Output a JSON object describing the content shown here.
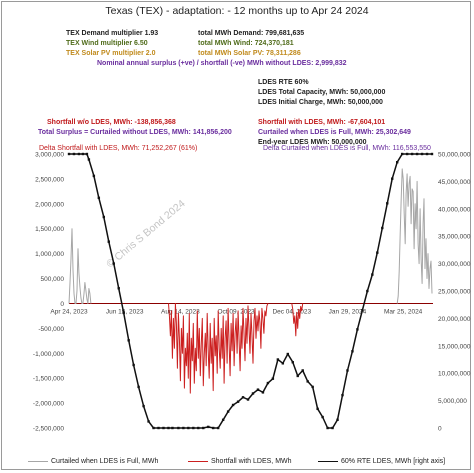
{
  "header": {
    "title": "Texas (TEX) - adaptation: - 12 months up to  Apr 24 2024",
    "demand_multiplier": "TEX Demand multiplier  1.93",
    "wind_multiplier": "TEX Wind multiplier  6.50",
    "solar_multiplier": "TEX Solar PV multiplier  2.0",
    "total_demand": "total MWh Demand:   799,681,635",
    "total_wind": "total MWh Wind:   724,370,181",
    "total_solar": "total MWh Solar PV:   78,311,286",
    "nominal_surplus": "Nominal annual surplus (+ve) / shortfall (-ve) MWh without LDES:   2,999,832",
    "ldes_rte": "LDES RTE 60%",
    "ldes_capacity": "LDES Total Capacity, MWh:  50,000,000",
    "ldes_initial": "LDES Initial Charge, MWh:  50,000,000"
  },
  "annotations": {
    "shortfall_without": "Shortfall w/o LDES, MWh:  -138,856,368",
    "total_surplus": "Total Surplus = Curtailed without LDES, MWh:  141,856,200",
    "delta_shortfall": "Delta Shortfall with LDES, MWh:  71,252,267  (61%)",
    "shortfall_with": "Shortfall with LDES, MWh:  -67,604,101",
    "curtailed_full": "Curtailed when LDES is Full, MWh:  25,302,649",
    "end_year": "End-year LDES MWh:  50,000,000",
    "delta_curtailed": "Delta Curtailed when LDES is Full, MWh:  116,553,550",
    "watermark": "© Chris S Bond  2024"
  },
  "colors": {
    "gray_series": "#a6a6a6",
    "red_series": "#cc1f1f",
    "black_series": "#111111",
    "demand_text": "#1f1f1f",
    "wind_text": "#4f6b1a",
    "solar_text": "#c08a1c",
    "purple_text": "#6a2e9e",
    "red_text": "#c0191b"
  },
  "chart_data": {
    "type": "line",
    "x_tick_labels": [
      "Apr 24, 2023",
      "Jun 19, 2023",
      "Aug 14, 2023",
      "Oct 09, 2023",
      "Dec 04, 2023",
      "Jan 29, 2024",
      "Mar 25, 2024"
    ],
    "x_tick_days": [
      0,
      56,
      112,
      168,
      224,
      280,
      336
    ],
    "x_range_days": [
      0,
      366
    ],
    "left_axis": {
      "ylim": [
        -2500000,
        3000000
      ],
      "ticks": [
        3000000,
        2500000,
        2000000,
        1500000,
        1000000,
        500000,
        0,
        -500000,
        -1000000,
        -1500000,
        -2000000,
        -2500000
      ],
      "tick_labels": [
        "3,000,000",
        "2,500,000",
        "2,000,000",
        "1,500,000",
        "1,000,000",
        "500,000",
        "0",
        "-500,000",
        "-1,000,000",
        "-1,500,000",
        "-2,000,000",
        "-2,500,000"
      ]
    },
    "right_axis": {
      "ylim": [
        0,
        50000000
      ],
      "ticks": [
        50000000,
        45000000,
        40000000,
        35000000,
        30000000,
        25000000,
        20000000,
        15000000,
        10000000,
        5000000,
        0
      ],
      "tick_labels": [
        "50,000,000",
        "45,000,000",
        "40,000,000",
        "35,000,000",
        "30,000,000",
        "25,000,000",
        "20,000,000",
        "15,000,000",
        "10,000,000",
        "5,000,000",
        "0"
      ]
    },
    "series": [
      {
        "name": "Curtailed when LDES is Full, MWh",
        "axis": "left",
        "x": [
          0,
          1,
          2,
          3,
          4,
          5,
          6,
          7,
          8,
          9,
          10,
          11,
          12,
          13,
          14,
          15,
          16,
          17,
          18,
          19,
          20,
          21,
          22,
          330,
          331,
          332,
          333,
          334,
          335,
          336,
          337,
          338,
          339,
          340,
          341,
          342,
          343,
          344,
          345,
          346,
          347,
          348,
          349,
          350,
          351,
          352,
          353,
          354,
          355,
          356,
          357,
          358,
          359,
          360,
          361,
          362,
          363,
          364,
          365
        ],
        "y": [
          0,
          420000,
          900000,
          1500000,
          680000,
          200000,
          0,
          0,
          260000,
          1100000,
          620000,
          340000,
          120000,
          0,
          0,
          180000,
          420000,
          260000,
          90000,
          0,
          300000,
          200000,
          0,
          0,
          150000,
          650000,
          1400000,
          2100000,
          2700000,
          2500000,
          1800000,
          1200000,
          2200000,
          2600000,
          1950000,
          2400000,
          2550000,
          1600000,
          2300000,
          2250000,
          1100000,
          2000000,
          1500000,
          2450000,
          1200000,
          800000,
          1900000,
          900000,
          400000,
          1600000,
          2100000,
          700000,
          1300000,
          500000,
          1000000,
          300000,
          700000,
          850000,
          200000
        ]
      },
      {
        "name": "Shortfall with LDES, MWh",
        "axis": "left",
        "x": [
          100,
          101,
          102,
          103,
          104,
          105,
          106,
          107,
          108,
          109,
          110,
          111,
          112,
          113,
          114,
          115,
          116,
          117,
          118,
          119,
          120,
          121,
          122,
          123,
          124,
          125,
          126,
          127,
          128,
          129,
          130,
          131,
          132,
          133,
          134,
          135,
          136,
          137,
          138,
          139,
          140,
          141,
          142,
          143,
          144,
          145,
          146,
          147,
          148,
          149,
          150,
          151,
          152,
          153,
          154,
          155,
          156,
          157,
          158,
          159,
          160,
          161,
          162,
          163,
          164,
          165,
          166,
          167,
          168,
          169,
          170,
          171,
          172,
          173,
          174,
          175,
          176,
          177,
          178,
          179,
          180,
          181,
          182,
          183,
          184,
          185,
          186,
          187,
          188,
          189,
          190,
          191,
          192,
          193,
          194,
          195,
          196,
          197,
          198,
          199,
          200,
          224,
          225,
          226,
          227,
          228,
          229,
          230,
          231,
          232,
          233,
          234,
          235
        ],
        "y": [
          0,
          -250000,
          -650000,
          -150000,
          -1100000,
          -300000,
          -900000,
          0,
          -400000,
          -1300000,
          -200000,
          -700000,
          -1550000,
          -500000,
          -1000000,
          -250000,
          -1700000,
          -900000,
          -1250000,
          -600000,
          -1500000,
          -200000,
          -1800000,
          -700000,
          -1150000,
          -400000,
          -1600000,
          -900000,
          -1350000,
          -150000,
          -1100000,
          -500000,
          -1450000,
          -800000,
          -300000,
          -1650000,
          -1000000,
          -600000,
          -1250000,
          -200000,
          -950000,
          -1500000,
          -400000,
          -1200000,
          -700000,
          -1750000,
          -300000,
          -1050000,
          -650000,
          -1400000,
          -150000,
          -900000,
          -1300000,
          -500000,
          -1100000,
          -250000,
          -1600000,
          -700000,
          -350000,
          -1200000,
          -100000,
          -800000,
          -1450000,
          -400000,
          -950000,
          -200000,
          -1250000,
          -600000,
          -300000,
          -1000000,
          -150000,
          -750000,
          -1350000,
          -450000,
          -900000,
          -100000,
          -600000,
          -1150000,
          -300000,
          -800000,
          -50000,
          -500000,
          -1000000,
          -200000,
          -650000,
          -1200000,
          -350000,
          -100000,
          -700000,
          -250000,
          -550000,
          -150000,
          -400000,
          -900000,
          -100000,
          -300000,
          -600000,
          -150000,
          -250000,
          -50000,
          0,
          0,
          -120000,
          -400000,
          -250000,
          -650000,
          -180000,
          -500000,
          -120000,
          -300000,
          -60000,
          -150000,
          0
        ]
      },
      {
        "name": "60%  RTE LDES, MWh [right axis]",
        "axis": "right",
        "x": [
          0,
          5,
          10,
          14,
          18,
          20,
          25,
          30,
          35,
          40,
          45,
          50,
          55,
          60,
          65,
          70,
          75,
          80,
          85,
          90,
          95,
          100,
          104,
          110,
          115,
          120,
          125,
          130,
          135,
          140,
          145,
          150,
          155,
          160,
          165,
          170,
          175,
          180,
          185,
          190,
          195,
          200,
          205,
          210,
          215,
          220,
          225,
          230,
          235,
          240,
          245,
          250,
          255,
          260,
          265,
          270,
          275,
          280,
          285,
          290,
          295,
          300,
          305,
          310,
          315,
          320,
          325,
          330,
          335,
          340,
          345,
          350,
          355,
          360,
          365
        ],
        "y": [
          50000000,
          50000000,
          50000000,
          50000000,
          50000000,
          49000000,
          46000000,
          42000000,
          38500000,
          34000000,
          30000000,
          25500000,
          21000000,
          16000000,
          11500000,
          7500000,
          4000000,
          1200000,
          0,
          0,
          0,
          0,
          0,
          0,
          0,
          0,
          0,
          0,
          0,
          200000,
          0,
          0,
          1500000,
          3000000,
          4200000,
          4800000,
          5600000,
          5200000,
          6300000,
          7000000,
          6500000,
          8200000,
          9000000,
          12500000,
          11800000,
          13500000,
          12000000,
          9500000,
          10500000,
          8500000,
          7500000,
          3500000,
          2000000,
          0,
          0,
          1500000,
          6000000,
          10500000,
          14000000,
          18000000,
          21500000,
          25000000,
          28000000,
          32000000,
          36500000,
          41000000,
          45500000,
          48500000,
          50000000,
          50000000,
          50000000,
          50000000,
          50000000,
          50000000,
          50000000
        ]
      }
    ],
    "legend": [
      "Curtailed when LDES is Full, MWh",
      "Shortfall with LDES, MWh",
      "60%  RTE LDES, MWh [right axis]"
    ],
    "legend_position": "bottom",
    "grid": false
  }
}
